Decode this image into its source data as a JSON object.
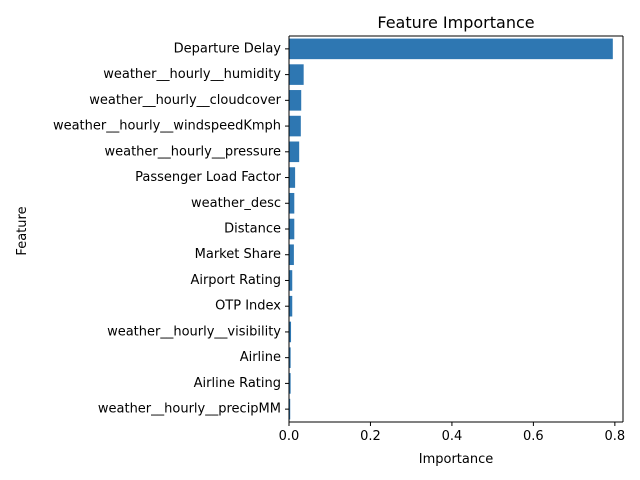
{
  "chart_data": {
    "type": "bar",
    "orientation": "horizontal",
    "title": "Feature Importance",
    "xlabel": "Importance",
    "ylabel": "Feature",
    "xlim": [
      0,
      0.82
    ],
    "xticks": [
      0.0,
      0.2,
      0.4,
      0.6,
      0.8
    ],
    "xtick_labels": [
      "0.0",
      "0.2",
      "0.4",
      "0.6",
      "0.8"
    ],
    "grid": false,
    "bar_color": "#2e77b2",
    "categories": [
      "Departure Delay",
      "weather__hourly__humidity",
      "weather__hourly__cloudcover",
      "weather__hourly__windspeedKmph",
      "weather__hourly__pressure",
      "Passenger Load Factor",
      "weather_desc",
      "Distance",
      "Market Share",
      "Airport Rating",
      "OTP Index",
      "weather__hourly__visibility",
      "Airline",
      "Airline Rating",
      "weather__hourly__precipMM"
    ],
    "values": [
      0.795,
      0.036,
      0.03,
      0.029,
      0.025,
      0.015,
      0.013,
      0.013,
      0.012,
      0.008,
      0.008,
      0.005,
      0.004,
      0.004,
      0.003
    ]
  }
}
